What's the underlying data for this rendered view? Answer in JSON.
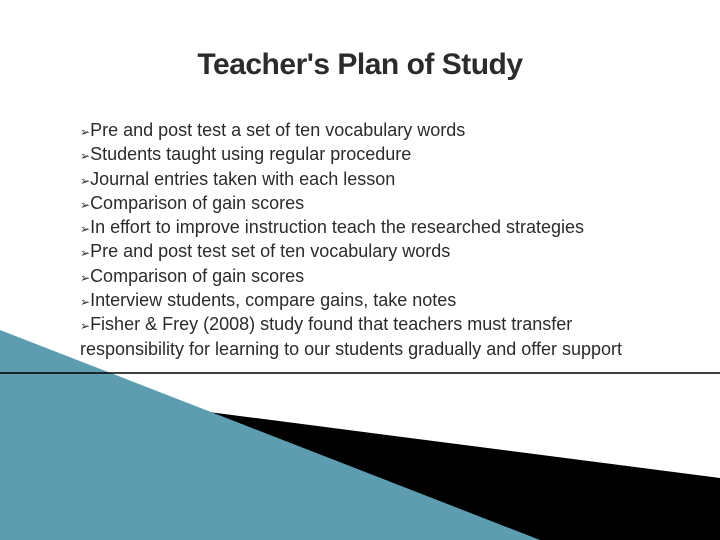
{
  "slide": {
    "title": "Teacher's Plan of Study",
    "title_fontsize": 30,
    "title_color": "#2b2b2b",
    "bullet_marker": "➢",
    "bullet_marker_fontsize": 12,
    "bullet_marker_color": "#2b2b2b",
    "body_fontsize": 18,
    "body_color": "#2b2b2b",
    "bullets": [
      "Pre and post test a set of ten vocabulary words",
      "Students taught using regular procedure",
      "Journal entries taken with each lesson",
      "Comparison of gain scores",
      "In effort to improve instruction teach the researched strategies",
      "Pre and post test set of ten vocabulary words",
      "Comparison of gain scores",
      "Interview students, compare gains, take notes",
      "Fisher & Frey (2008) study found that teachers must transfer responsibility for learning to our students gradually and offer support"
    ],
    "background_color": "#ffffff",
    "decor": {
      "triangle_color": "#5e9caf",
      "band_color": "#000000",
      "line_color": "#000000"
    }
  }
}
